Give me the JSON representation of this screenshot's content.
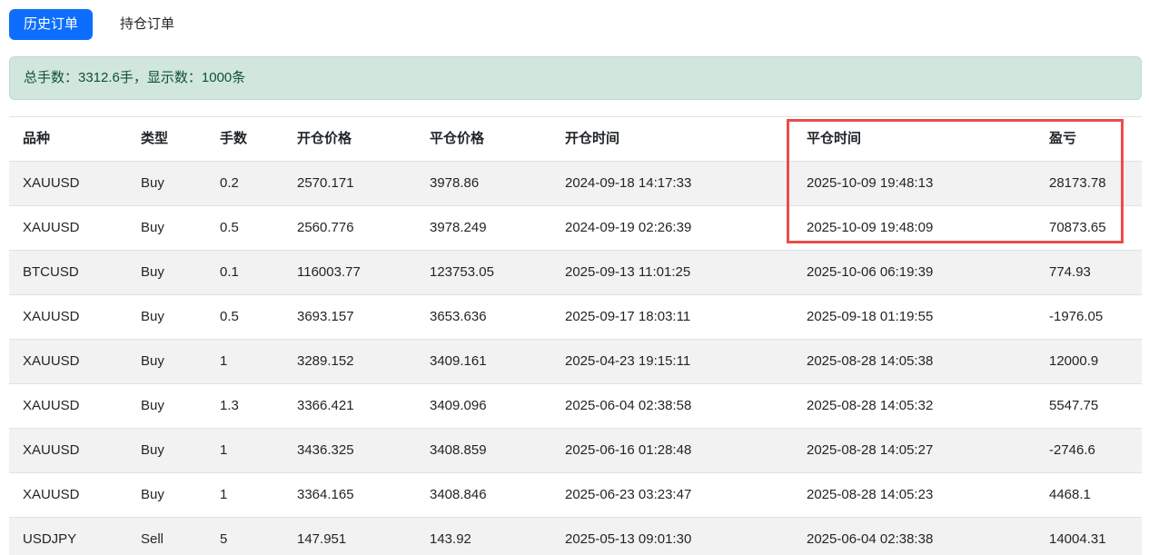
{
  "tabs": [
    {
      "label": "历史订单",
      "active": true
    },
    {
      "label": "持仓订单",
      "active": false
    }
  ],
  "summary": {
    "text": "总手数：3312.6手，显示数：1000条",
    "total_lots": "3312.6",
    "shown_count": "1000"
  },
  "table": {
    "columns": [
      "品种",
      "类型",
      "手数",
      "开仓价格",
      "平仓价格",
      "开仓时间",
      "平仓时间",
      "盈亏"
    ],
    "keys": [
      "symbol",
      "type",
      "lots",
      "open_price",
      "close_price",
      "open_time",
      "close_time",
      "profit"
    ],
    "rows": [
      {
        "symbol": "XAUUSD",
        "type": "Buy",
        "lots": "0.2",
        "open_price": "2570.171",
        "close_price": "3978.86",
        "open_time": "2024-09-18 14:17:33",
        "close_time": "2025-10-09 19:48:13",
        "profit": "28173.78"
      },
      {
        "symbol": "XAUUSD",
        "type": "Buy",
        "lots": "0.5",
        "open_price": "2560.776",
        "close_price": "3978.249",
        "open_time": "2024-09-19 02:26:39",
        "close_time": "2025-10-09 19:48:09",
        "profit": "70873.65"
      },
      {
        "symbol": "BTCUSD",
        "type": "Buy",
        "lots": "0.1",
        "open_price": "116003.77",
        "close_price": "123753.05",
        "open_time": "2025-09-13 11:01:25",
        "close_time": "2025-10-06 06:19:39",
        "profit": "774.93"
      },
      {
        "symbol": "XAUUSD",
        "type": "Buy",
        "lots": "0.5",
        "open_price": "3693.157",
        "close_price": "3653.636",
        "open_time": "2025-09-17 18:03:11",
        "close_time": "2025-09-18 01:19:55",
        "profit": "-1976.05"
      },
      {
        "symbol": "XAUUSD",
        "type": "Buy",
        "lots": "1",
        "open_price": "3289.152",
        "close_price": "3409.161",
        "open_time": "2025-04-23 19:15:11",
        "close_time": "2025-08-28 14:05:38",
        "profit": "12000.9"
      },
      {
        "symbol": "XAUUSD",
        "type": "Buy",
        "lots": "1.3",
        "open_price": "3366.421",
        "close_price": "3409.096",
        "open_time": "2025-06-04 02:38:58",
        "close_time": "2025-08-28 14:05:32",
        "profit": "5547.75"
      },
      {
        "symbol": "XAUUSD",
        "type": "Buy",
        "lots": "1",
        "open_price": "3436.325",
        "close_price": "3408.859",
        "open_time": "2025-06-16 01:28:48",
        "close_time": "2025-08-28 14:05:27",
        "profit": "-2746.6"
      },
      {
        "symbol": "XAUUSD",
        "type": "Buy",
        "lots": "1",
        "open_price": "3364.165",
        "close_price": "3408.846",
        "open_time": "2025-06-23 03:23:47",
        "close_time": "2025-08-28 14:05:23",
        "profit": "4468.1"
      },
      {
        "symbol": "USDJPY",
        "type": "Sell",
        "lots": "5",
        "open_price": "147.951",
        "close_price": "143.92",
        "open_time": "2025-05-13 09:01:30",
        "close_time": "2025-06-04 02:38:38",
        "profit": "14004.31"
      }
    ]
  },
  "annotation": {
    "type": "highlight-box",
    "highlighted_columns": [
      "平仓时间",
      "盈亏"
    ],
    "highlighted_rows": "header and first two data rows"
  },
  "colors": {
    "accent_blue": "#0d6efd",
    "alert_bg": "#d1e7dd",
    "alert_text": "#0f5132",
    "stripe_gray": "#f2f2f3",
    "row_border": "#dee2e6",
    "highlight_red": "#ea4e48",
    "text": "#212529"
  }
}
